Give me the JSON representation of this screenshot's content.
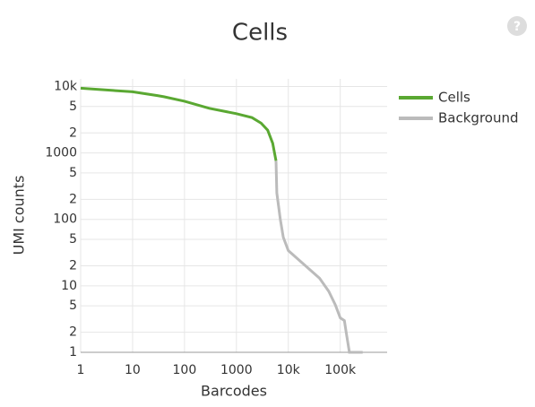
{
  "chart_data": {
    "type": "line",
    "title": "Cells",
    "xlabel": "Barcodes",
    "ylabel": "UMI counts",
    "xscale": "log",
    "yscale": "log",
    "grid": true,
    "legend": "right",
    "xlim": [
      1,
      800000
    ],
    "ylim": [
      1,
      13000
    ],
    "xticks": [
      1,
      10,
      100,
      1000,
      {
        "value": 10000,
        "label": "10k"
      },
      {
        "value": 100000,
        "label": "100k"
      }
    ],
    "yticks": [
      1,
      2,
      5,
      10,
      {
        "value": 20,
        "label": "2"
      },
      {
        "value": 50,
        "label": "5"
      },
      100,
      {
        "value": 200,
        "label": "2"
      },
      {
        "value": 500,
        "label": "5"
      },
      1000,
      {
        "value": 2000,
        "label": "2"
      },
      {
        "value": 5000,
        "label": "5"
      },
      {
        "value": 10000,
        "label": "10k"
      }
    ],
    "series": [
      {
        "name": "Cells",
        "color": "#5aa832",
        "x": [
          1,
          10,
          30,
          40,
          100,
          300,
          1000,
          2000,
          3000,
          4000,
          5000,
          5800
        ],
        "values": [
          9400,
          8300,
          7300,
          7000,
          6000,
          4700,
          3900,
          3400,
          2800,
          2200,
          1400,
          760
        ]
      },
      {
        "name": "Background",
        "color": "#bbbbbb",
        "x": [
          5800,
          6000,
          7000,
          8000,
          10000,
          20000,
          40000,
          60000,
          80000,
          100000,
          120000,
          130000,
          150000,
          200000,
          270000
        ],
        "values": [
          760,
          250,
          100,
          54,
          34,
          21,
          13,
          8.3,
          5.2,
          3.3,
          3,
          2,
          1,
          1,
          1
        ]
      }
    ]
  }
}
